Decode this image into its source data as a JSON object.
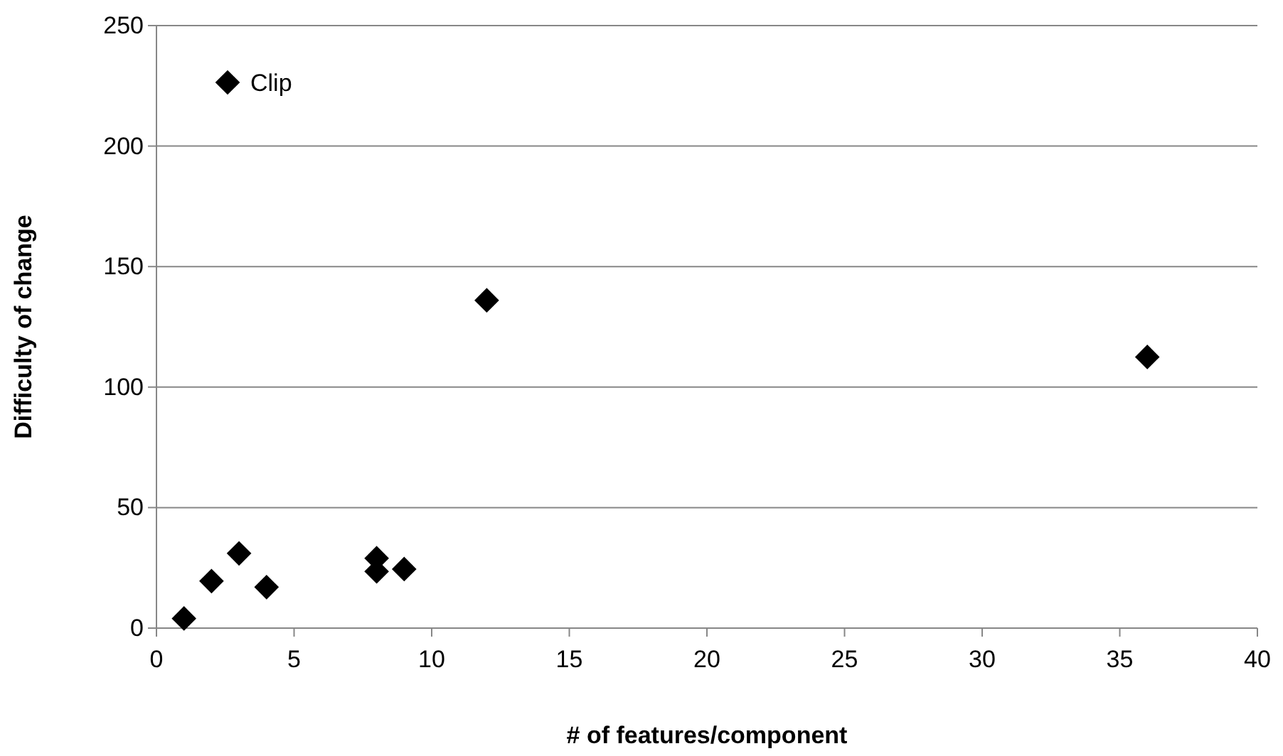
{
  "chart_data": {
    "type": "scatter",
    "xlabel": "# of features/component",
    "ylabel": "Difficulty of change",
    "xlim": [
      0,
      40
    ],
    "xticks": [
      0,
      5,
      10,
      15,
      20,
      25,
      30,
      35,
      40
    ],
    "ylim": [
      0,
      250
    ],
    "yticks": [
      0,
      50,
      100,
      150,
      200,
      250
    ],
    "grid": "y",
    "legend": "top left",
    "marker": "diamond",
    "series": [
      {
        "name": "Clip",
        "color": "#000000",
        "x": [
          1,
          2,
          3,
          4,
          8,
          8,
          9,
          12,
          36
        ],
        "values": [
          4,
          19.5,
          31,
          17,
          29,
          23.5,
          24.5,
          136,
          112.5
        ]
      }
    ]
  }
}
